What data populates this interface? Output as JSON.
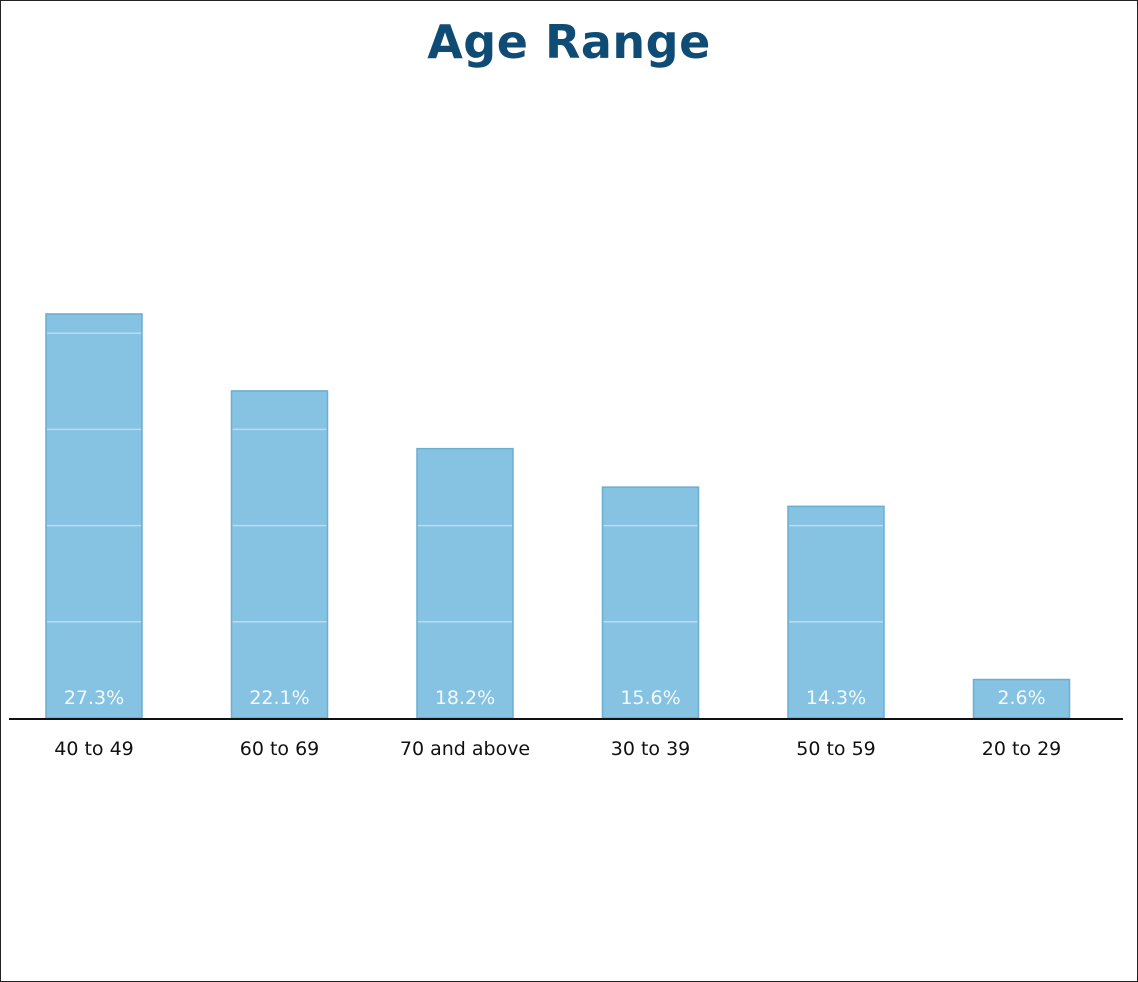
{
  "colors": {
    "title": "#0f4c75",
    "bar_fill": "#86c3e3",
    "bar_edge": "#6aaed0",
    "band_line": "#b9ddf0",
    "axis": "#111111",
    "value_label": "#f4f9fd",
    "category_label": "#111111"
  },
  "chart_data": {
    "type": "bar",
    "title": "Age Range",
    "categories": [
      "40 to 49",
      "60 to 69",
      "70 and above",
      "30 to 39",
      "50 to 59",
      "20 to 29"
    ],
    "values": [
      27.3,
      22.1,
      18.2,
      15.6,
      14.3,
      2.6
    ],
    "value_labels": [
      "27.3%",
      "22.1%",
      "18.2%",
      "15.6%",
      "14.3%",
      "2.6%"
    ],
    "unit": "%",
    "ylim": [
      0,
      40
    ],
    "grid_lines_in_bars": [
      6.5,
      13,
      19.5,
      26
    ],
    "xlabel": "",
    "ylabel": "",
    "legend": "none"
  }
}
